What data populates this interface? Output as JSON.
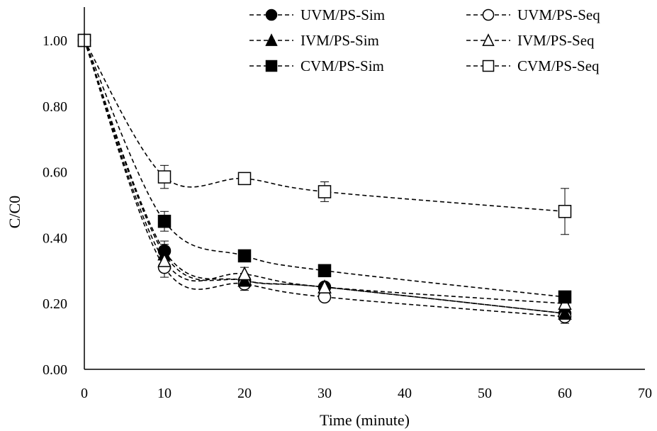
{
  "chart_data": {
    "type": "scatter",
    "title": "",
    "xlabel": "Time (minute)",
    "ylabel": "C/C0",
    "xlim": [
      0,
      70
    ],
    "ylim": [
      0,
      1.0
    ],
    "xticks": [
      0,
      10,
      20,
      30,
      40,
      50,
      60,
      70
    ],
    "xtick_labels": [
      "0",
      "10",
      "20",
      "30",
      "40",
      "50",
      "60",
      "70"
    ],
    "yticks": [
      0,
      0.2,
      0.4,
      0.6,
      0.8,
      1.0
    ],
    "ytick_labels": [
      "0.00",
      "0.20",
      "0.40",
      "0.60",
      "0.80",
      "1.00"
    ],
    "grid": false,
    "legend_position": "top-right",
    "line_style": "dashed smoothed",
    "series": [
      {
        "name": "UVM/PS-Sim",
        "marker": "circle",
        "filled": true,
        "x": [
          0,
          10,
          20,
          30,
          60
        ],
        "y": [
          1.0,
          0.36,
          0.27,
          0.25,
          0.17
        ],
        "error": [
          0,
          0.03,
          0.02,
          0.01,
          0.03
        ]
      },
      {
        "name": "UVM/PS-Seq",
        "marker": "circle",
        "filled": false,
        "x": [
          0,
          10,
          20,
          30,
          60
        ],
        "y": [
          1.0,
          0.31,
          0.26,
          0.22,
          0.16
        ],
        "error": [
          0,
          0.03,
          0.02,
          0.01,
          0.02
        ]
      },
      {
        "name": "IVM/PS-Sim",
        "marker": "triangle",
        "filled": true,
        "x": [
          0,
          10,
          20,
          30,
          60
        ],
        "y": [
          1.0,
          0.35,
          0.27,
          0.25,
          0.17
        ],
        "error": [
          0,
          0.03,
          0.02,
          0.01,
          0.02
        ]
      },
      {
        "name": "IVM/PS-Seq",
        "marker": "triangle",
        "filled": false,
        "x": [
          0,
          10,
          20,
          30,
          60
        ],
        "y": [
          1.0,
          0.33,
          0.29,
          0.25,
          0.2
        ],
        "error": [
          0,
          0.03,
          0.02,
          0.01,
          0.02
        ]
      },
      {
        "name": "CVM/PS-Sim",
        "marker": "square",
        "filled": true,
        "x": [
          0,
          10,
          20,
          30,
          60
        ],
        "y": [
          1.0,
          0.45,
          0.345,
          0.3,
          0.22
        ],
        "error": [
          0,
          0.03,
          0.01,
          0.01,
          0.01
        ]
      },
      {
        "name": "CVM/PS-Seq",
        "marker": "square",
        "filled": false,
        "x": [
          0,
          10,
          20,
          30,
          60
        ],
        "y": [
          1.0,
          0.585,
          0.58,
          0.54,
          0.48
        ],
        "error": [
          0,
          0.035,
          0.01,
          0.03,
          0.07
        ]
      }
    ]
  }
}
